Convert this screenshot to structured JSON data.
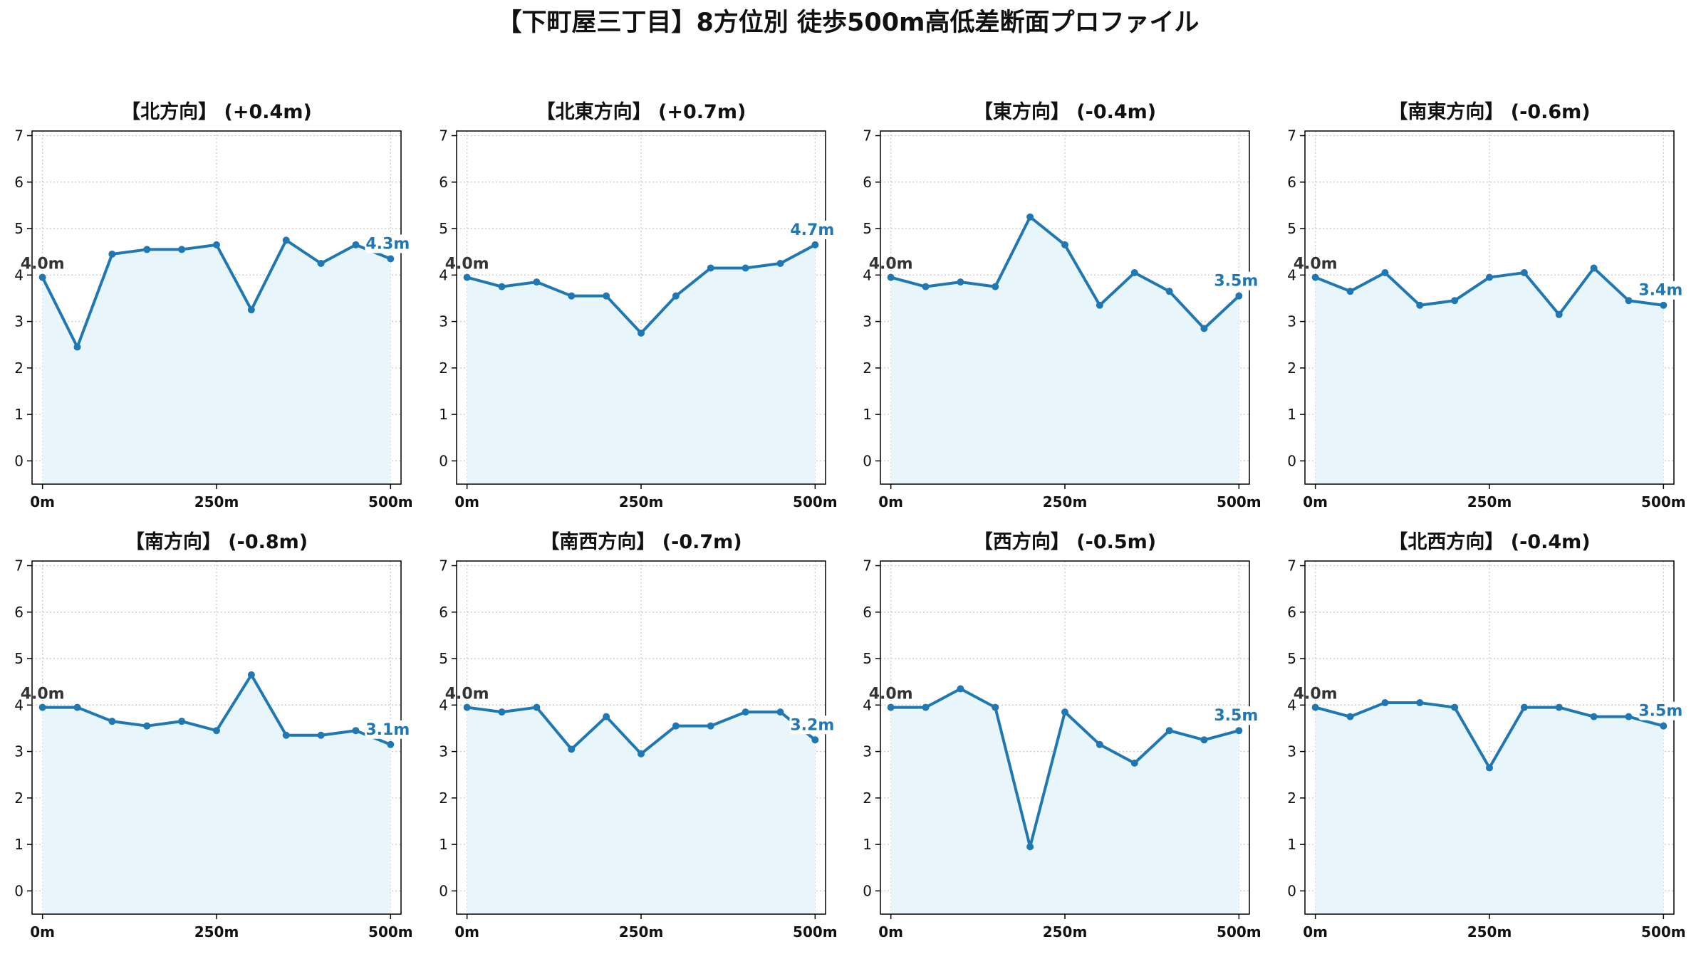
{
  "title": "【下町屋三丁目】8方位別 徒歩500m高低差断面プロファイル",
  "colors": {
    "line": "#1f77b4",
    "fill": "#e8f6fb",
    "start_label": "#333333",
    "end_label": "#1f77b4",
    "grid": "#cccccc"
  },
  "chart_data": [
    {
      "type": "line",
      "title": "【北方向】 (+0.4m)",
      "x": [
        0,
        50,
        100,
        150,
        200,
        250,
        300,
        350,
        400,
        450,
        500
      ],
      "values": [
        3.95,
        2.45,
        4.45,
        4.55,
        4.55,
        4.65,
        3.25,
        4.75,
        4.25,
        4.65,
        4.35
      ],
      "start_label": "4.0m",
      "end_label": "4.3m"
    },
    {
      "type": "line",
      "title": "【北東方向】 (+0.7m)",
      "x": [
        0,
        50,
        100,
        150,
        200,
        250,
        300,
        350,
        400,
        450,
        500
      ],
      "values": [
        3.95,
        3.75,
        3.85,
        3.55,
        3.55,
        2.75,
        3.55,
        4.15,
        4.15,
        4.25,
        4.65
      ],
      "start_label": "4.0m",
      "end_label": "4.7m"
    },
    {
      "type": "line",
      "title": "【東方向】 (-0.4m)",
      "x": [
        0,
        50,
        100,
        150,
        200,
        250,
        300,
        350,
        400,
        450,
        500
      ],
      "values": [
        3.95,
        3.75,
        3.85,
        3.75,
        5.25,
        4.65,
        3.35,
        4.05,
        3.65,
        2.85,
        3.55
      ],
      "start_label": "4.0m",
      "end_label": "3.5m"
    },
    {
      "type": "line",
      "title": "【南東方向】 (-0.6m)",
      "x": [
        0,
        50,
        100,
        150,
        200,
        250,
        300,
        350,
        400,
        450,
        500
      ],
      "values": [
        3.95,
        3.65,
        4.05,
        3.35,
        3.45,
        3.95,
        4.05,
        3.15,
        4.15,
        3.45,
        3.35
      ],
      "start_label": "4.0m",
      "end_label": "3.4m"
    },
    {
      "type": "line",
      "title": "【南方向】 (-0.8m)",
      "x": [
        0,
        50,
        100,
        150,
        200,
        250,
        300,
        350,
        400,
        450,
        500
      ],
      "values": [
        3.95,
        3.95,
        3.65,
        3.55,
        3.65,
        3.45,
        4.65,
        3.35,
        3.35,
        3.45,
        3.15
      ],
      "start_label": "4.0m",
      "end_label": "3.1m"
    },
    {
      "type": "line",
      "title": "【南西方向】 (-0.7m)",
      "x": [
        0,
        50,
        100,
        150,
        200,
        250,
        300,
        350,
        400,
        450,
        500
      ],
      "values": [
        3.95,
        3.85,
        3.95,
        3.05,
        3.75,
        2.95,
        3.55,
        3.55,
        3.85,
        3.85,
        3.25
      ],
      "start_label": "4.0m",
      "end_label": "3.2m"
    },
    {
      "type": "line",
      "title": "【西方向】 (-0.5m)",
      "x": [
        0,
        50,
        100,
        150,
        200,
        250,
        300,
        350,
        400,
        450,
        500
      ],
      "values": [
        3.95,
        3.95,
        4.35,
        3.95,
        0.95,
        3.85,
        3.15,
        2.75,
        3.45,
        3.25,
        3.45
      ],
      "start_label": "4.0m",
      "end_label": "3.5m"
    },
    {
      "type": "line",
      "title": "【北西方向】 (-0.4m)",
      "x": [
        0,
        50,
        100,
        150,
        200,
        250,
        300,
        350,
        400,
        450,
        500
      ],
      "values": [
        3.95,
        3.75,
        4.05,
        4.05,
        3.95,
        2.65,
        3.95,
        3.95,
        3.75,
        3.75,
        3.55
      ],
      "start_label": "4.0m",
      "end_label": "3.5m"
    }
  ],
  "axes": {
    "ylim": [
      -0.5,
      7.1
    ],
    "xlim": [
      -15,
      515
    ],
    "yticks": [
      "0",
      "1",
      "2",
      "3",
      "4",
      "5",
      "6",
      "7"
    ],
    "xticks": [
      "0m",
      "250m",
      "500m"
    ],
    "grid": true
  }
}
